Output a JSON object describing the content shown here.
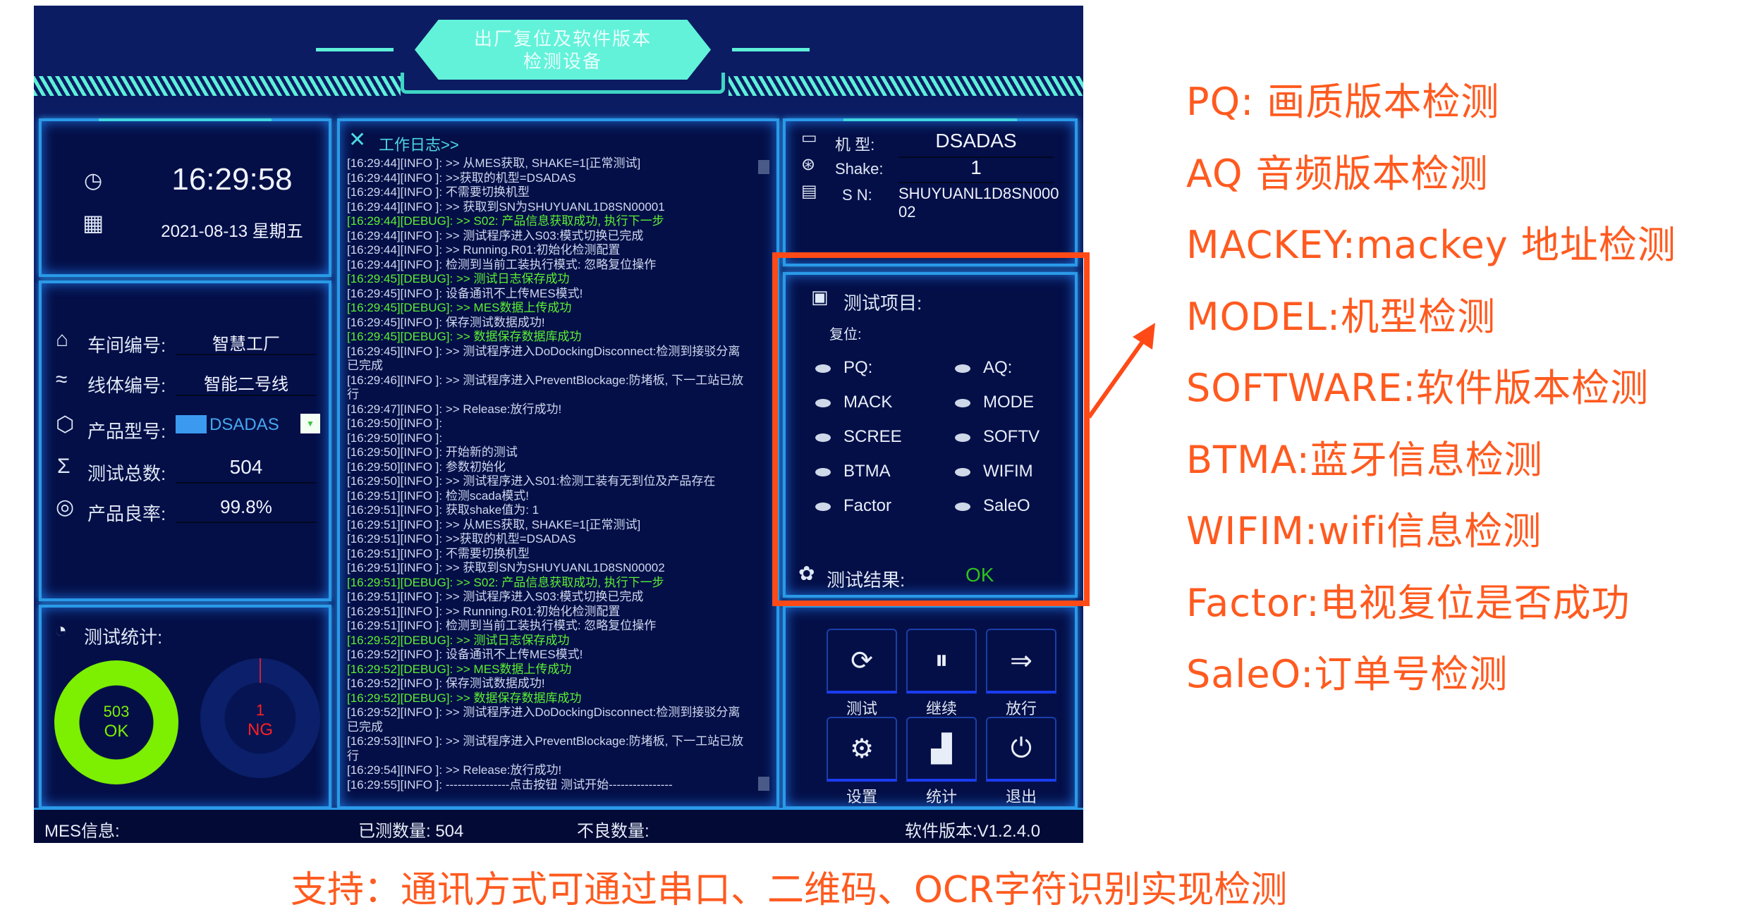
{
  "header": {
    "title_line1": "出厂复位及软件版本",
    "title_line2": "检测设备"
  },
  "clock": {
    "time": "16:29:58",
    "date": "2021-08-13  星期五",
    "clock_icon": "clock-icon",
    "calendar_icon": "calendar-icon"
  },
  "info": {
    "workshop_label": "车间编号:",
    "workshop_value": "智慧工厂",
    "line_label": "线体编号:",
    "line_value": "智能二号线",
    "product_label": "产品型号:",
    "product_value": "DSADAS",
    "total_label": "测试总数:",
    "total_value": "504",
    "yield_label": "产品良率:",
    "yield_value": "99.8%"
  },
  "stats": {
    "title": "测试统计:",
    "ok_count": "503",
    "ok_label": "OK",
    "ng_count": "1",
    "ng_label": "NG",
    "ok_color": "#7cf000",
    "ng_color": "#ff2020"
  },
  "log": {
    "title": "工作日志>>",
    "lines": [
      {
        "t": "[16:29:44][INFO ]: >> 从MES获取, SHAKE=1[正常测试]",
        "level": "info"
      },
      {
        "t": "[16:29:44][INFO ]: >>获取的机型=DSADAS",
        "level": "info"
      },
      {
        "t": "[16:29:44][INFO ]: 不需要切换机型",
        "level": "info"
      },
      {
        "t": "[16:29:44][INFO ]: >> 获取到SN为SHUYUANL1D8SN00001",
        "level": "info"
      },
      {
        "t": "[16:29:44][DEBUG]: >> S02: 产品信息获取成功, 执行下一步",
        "level": "debug"
      },
      {
        "t": "[16:29:44][INFO ]: >> 测试程序进入S03:模式切换已完成",
        "level": "info"
      },
      {
        "t": "[16:29:44][INFO ]: >>  Running.R01:初始化检测配置",
        "level": "info"
      },
      {
        "t": "[16:29:44][INFO ]: 检测到当前工装执行模式: 忽略复位操作",
        "level": "info"
      },
      {
        "t": "[16:29:45][DEBUG]: >>  测试日志保存成功",
        "level": "debug"
      },
      {
        "t": "[16:29:45][INFO ]: 设备通讯不上传MES模式!",
        "level": "info"
      },
      {
        "t": "[16:29:45][DEBUG]: >>  MES数据上传成功",
        "level": "debug"
      },
      {
        "t": "[16:29:45][INFO ]: 保存测试数据成功!",
        "level": "info"
      },
      {
        "t": "[16:29:45][DEBUG]: >> 数据保存数据库成功",
        "level": "debug"
      },
      {
        "t": "[16:29:45][INFO ]: >> 测试程序进入DoDockingDisconnect:检测到接驳分离已完成",
        "level": "info"
      },
      {
        "t": "[16:29:46][INFO ]: >> 测试程序进入PreventBlockage:防堵板, 下一工站已放行",
        "level": "info"
      },
      {
        "t": "[16:29:47][INFO ]: >> Release:放行成功!",
        "level": "info"
      },
      {
        "t": "[16:29:50][INFO ]:",
        "level": "info"
      },
      {
        "t": "[16:29:50][INFO ]:",
        "level": "info"
      },
      {
        "t": "[16:29:50][INFO ]: 开始新的测试",
        "level": "info"
      },
      {
        "t": "[16:29:50][INFO ]: 参数初始化",
        "level": "info"
      },
      {
        "t": "[16:29:50][INFO ]: >> 测试程序进入S01:检测工装有无到位及产品存在",
        "level": "info"
      },
      {
        "t": "[16:29:51][INFO ]: 检测scada模式!",
        "level": "info"
      },
      {
        "t": "[16:29:51][INFO ]: 获取shake值为:  1",
        "level": "info"
      },
      {
        "t": "[16:29:51][INFO ]: >> 从MES获取, SHAKE=1[正常测试]",
        "level": "info"
      },
      {
        "t": "[16:29:51][INFO ]: >>获取的机型=DSADAS",
        "level": "info"
      },
      {
        "t": "[16:29:51][INFO ]: 不需要切换机型",
        "level": "info"
      },
      {
        "t": "[16:29:51][INFO ]: >> 获取到SN为SHUYUANL1D8SN00002",
        "level": "info"
      },
      {
        "t": "[16:29:51][DEBUG]: >> S02: 产品信息获取成功, 执行下一步",
        "level": "debug"
      },
      {
        "t": "[16:29:51][INFO ]: >> 测试程序进入S03:模式切换已完成",
        "level": "info"
      },
      {
        "t": "[16:29:51][INFO ]: >>  Running.R01:初始化检测配置",
        "level": "info"
      },
      {
        "t": "[16:29:51][INFO ]: 检测到当前工装执行模式: 忽略复位操作",
        "level": "info"
      },
      {
        "t": "[16:29:52][DEBUG]: >>  测试日志保存成功",
        "level": "debug"
      },
      {
        "t": "[16:29:52][INFO ]: 设备通讯不上传MES模式!",
        "level": "info"
      },
      {
        "t": "[16:29:52][DEBUG]: >>  MES数据上传成功",
        "level": "debug"
      },
      {
        "t": "[16:29:52][INFO ]: 保存测试数据成功!",
        "level": "info"
      },
      {
        "t": "[16:29:52][DEBUG]: >> 数据保存数据库成功",
        "level": "debug"
      },
      {
        "t": "[16:29:52][INFO ]: >> 测试程序进入DoDockingDisconnect:检测到接驳分离已完成",
        "level": "info"
      },
      {
        "t": "[16:29:53][INFO ]: >> 测试程序进入PreventBlockage:防堵板, 下一工站已放行",
        "level": "info"
      },
      {
        "t": "[16:29:54][INFO ]: >> Release:放行成功!",
        "level": "info"
      },
      {
        "t": "[16:29:55][INFO ]: ----------------点击按钮 测试开始----------------",
        "level": "info"
      }
    ]
  },
  "device": {
    "model_label": "机  型:",
    "model_value": "DSADAS",
    "shake_label": "Shake:",
    "shake_value": "1",
    "sn_label": "S  N:",
    "sn_value": "SHUYUANL1D8SN00002"
  },
  "test_items": {
    "title": "测试项目:",
    "group": "复位:",
    "items": [
      "PQ:",
      "AQ:",
      "MACK",
      "MODE",
      "SCREE",
      "SOFTV",
      "BTMA",
      "WIFIM",
      "Factor",
      "SaleO"
    ],
    "result_label": "测试结果:",
    "result_value": "OK",
    "result_color": "#2ec21a"
  },
  "buttons": [
    {
      "label": "测试",
      "icon": "play-circle-icon"
    },
    {
      "label": "继续",
      "icon": "pause-circle-icon"
    },
    {
      "label": "放行",
      "icon": "go-arrow-icon"
    },
    {
      "label": "设置",
      "icon": "gear-icon"
    },
    {
      "label": "统计",
      "icon": "bar-chart-icon"
    },
    {
      "label": "退出",
      "icon": "power-icon"
    }
  ],
  "statusbar": {
    "mes": "MES信息:",
    "tested": "已测数量: 504",
    "defects": "不良数量:",
    "version": "软件版本:V1.2.4.0"
  },
  "annotations": [
    "PQ: 画质版本检测",
    "AQ 音频版本检测",
    "MACKEY:mackey 地址检测",
    "MODEL:机型检测",
    "SOFTWARE:软件版本检测",
    "BTMA:蓝牙信息检测",
    "WIFIM:wifi信息检测",
    "Factor:电视复位是否成功",
    "SaleO:订单号检测"
  ],
  "caption": "支持：通讯方式可通过串口、二维码、OCR字符识别实现检测",
  "colors": {
    "annotation": "#ff5a1f",
    "panel_border": "#2a9ae8",
    "title_plate": "#62f2da",
    "log_debug": "#5cf032"
  }
}
